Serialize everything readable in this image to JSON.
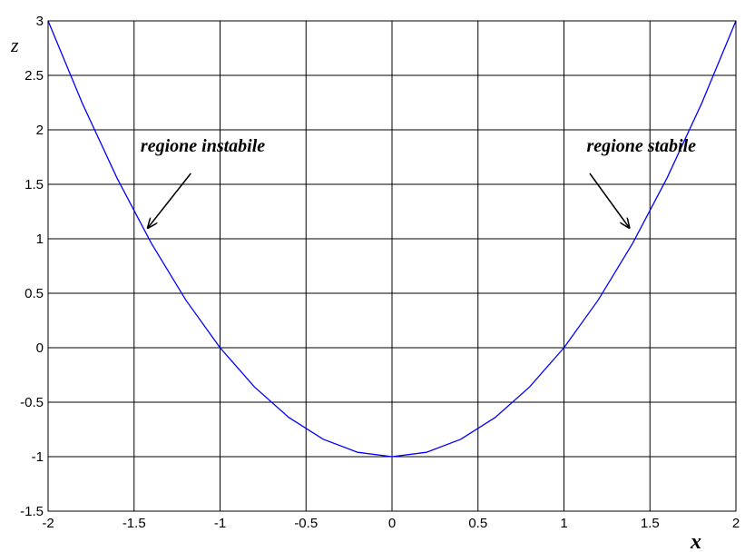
{
  "chart_data": {
    "type": "line",
    "title": "",
    "xlabel": "x",
    "ylabel": "z",
    "xlim": [
      -2,
      2
    ],
    "ylim": [
      -1.5,
      3
    ],
    "grid": true,
    "x_ticks": [
      -2,
      -1.5,
      -1,
      -0.5,
      0,
      0.5,
      1,
      1.5,
      2
    ],
    "y_ticks": [
      -1.5,
      -1,
      -0.5,
      0,
      0.5,
      1,
      1.5,
      2,
      2.5,
      3
    ],
    "x_tick_labels": [
      "-2",
      "-1.5",
      "-1",
      "-0.5",
      "0",
      "0.5",
      "1",
      "1.5",
      "2"
    ],
    "y_tick_labels": [
      "-1.5",
      "-1",
      "-0.5",
      "0",
      "0.5",
      "1",
      "1.5",
      "2",
      "2.5",
      "3"
    ],
    "series": [
      {
        "color": "#0000ff",
        "x": [
          -2,
          -1.8,
          -1.6,
          -1.4,
          -1.2,
          -1,
          -0.8,
          -0.6,
          -0.4,
          -0.2,
          0,
          0.2,
          0.4,
          0.6,
          0.8,
          1,
          1.2,
          1.4,
          1.6,
          1.8,
          2
        ],
        "y": [
          3,
          2.24,
          1.56,
          0.96,
          0.44,
          0,
          -0.36,
          -0.64,
          -0.84,
          -0.96,
          -1,
          -0.96,
          -0.84,
          -0.64,
          -0.36,
          0,
          0.44,
          0.96,
          1.56,
          2.24,
          3
        ]
      }
    ],
    "annotations": [
      {
        "text": "regione instabile",
        "text_at": [
          -1.1,
          1.8
        ],
        "arrow_from": [
          -1.17,
          1.6
        ],
        "arrow_to": [
          -1.42,
          1.1
        ]
      },
      {
        "text": "regione stabile",
        "text_at": [
          1.45,
          1.8
        ],
        "arrow_from": [
          1.15,
          1.6
        ],
        "arrow_to": [
          1.38,
          1.1
        ]
      }
    ]
  }
}
